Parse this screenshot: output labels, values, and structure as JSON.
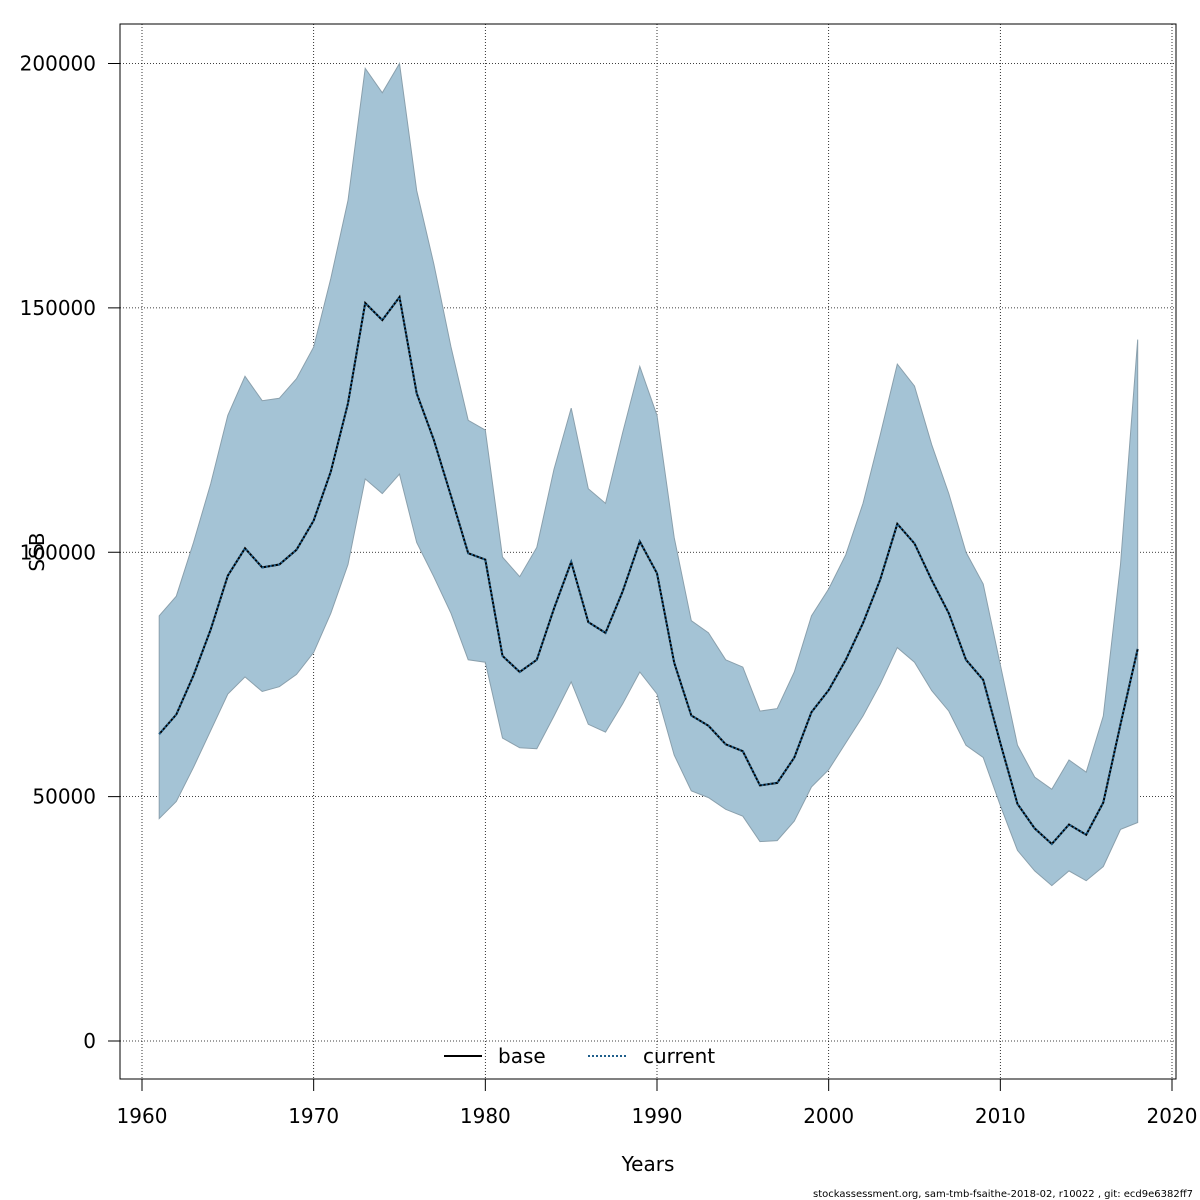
{
  "chart_data": {
    "type": "line",
    "title": "",
    "xlabel": "Years",
    "ylabel": "SSB",
    "xlim": [
      1960,
      2020
    ],
    "ylim": [
      0,
      200000
    ],
    "xticks": [
      1960,
      1970,
      1980,
      1990,
      2000,
      2010,
      2020
    ],
    "yticks": [
      0,
      50000,
      100000,
      150000,
      200000
    ],
    "grid": true,
    "legend_position": "bottom-center",
    "band_color": "#a4c3d5",
    "band_edge_color": "#8aa0ad",
    "years": [
      1961,
      1962,
      1963,
      1964,
      1965,
      1966,
      1967,
      1968,
      1969,
      1970,
      1971,
      1972,
      1973,
      1974,
      1975,
      1976,
      1977,
      1978,
      1979,
      1980,
      1981,
      1982,
      1983,
      1984,
      1985,
      1986,
      1987,
      1988,
      1989,
      1990,
      1991,
      1992,
      1993,
      1994,
      1995,
      1996,
      1997,
      1998,
      1999,
      2000,
      2001,
      2002,
      2003,
      2004,
      2005,
      2006,
      2007,
      2008,
      2009,
      2010,
      2011,
      2012,
      2013,
      2014,
      2015,
      2016,
      2017,
      2018
    ],
    "upper": [
      87000,
      91000,
      102000,
      114000,
      128000,
      136000,
      131000,
      131500,
      135500,
      142000,
      156000,
      172000,
      199000,
      194000,
      200000,
      174000,
      159000,
      142000,
      127000,
      125000,
      99000,
      95000,
      101000,
      117000,
      129500,
      113000,
      110000,
      124500,
      138000,
      128000,
      103000,
      86000,
      83500,
      78000,
      76500,
      67500,
      68000,
      75500,
      87000,
      92500,
      99500,
      110000,
      124000,
      138500,
      134000,
      122000,
      112000,
      100000,
      93500,
      77000,
      60500,
      54000,
      51500,
      57500,
      55000,
      66500,
      97500,
      143500
    ],
    "lower": [
      45500,
      49000,
      56000,
      63500,
      71000,
      74500,
      71500,
      72500,
      75000,
      79500,
      87500,
      97500,
      115000,
      112000,
      116000,
      102000,
      95000,
      87500,
      78000,
      77500,
      62000,
      60000,
      59800,
      66500,
      73500,
      64800,
      63200,
      69000,
      75500,
      71000,
      58500,
      51200,
      49800,
      47400,
      46000,
      40800,
      41000,
      45000,
      52000,
      55500,
      61000,
      66500,
      73000,
      80500,
      77500,
      71700,
      67500,
      60500,
      58000,
      48200,
      39000,
      34800,
      31800,
      34800,
      32800,
      35700,
      43300,
      44700
    ],
    "series": [
      {
        "name": "base",
        "style": "solid",
        "color": "#000000",
        "values": [
          62800,
          66800,
          74800,
          84200,
          95200,
          100800,
          96900,
          97500,
          100500,
          106500,
          116500,
          130500,
          151000,
          147500,
          152200,
          132500,
          123000,
          111500,
          99800,
          98500,
          78800,
          75500,
          78000,
          88500,
          98000,
          85700,
          83500,
          92000,
          102200,
          95700,
          77400,
          66600,
          64500,
          60700,
          59300,
          52300,
          52800,
          58000,
          67300,
          71800,
          78000,
          85500,
          94400,
          105800,
          101800,
          94300,
          87500,
          78000,
          73900,
          61000,
          48500,
          43500,
          40300,
          44300,
          42200,
          48800,
          64800,
          80200
        ]
      },
      {
        "name": "current",
        "style": "dotted",
        "color": "#1f5f8b",
        "values": [
          62800,
          66800,
          74800,
          84200,
          95200,
          100800,
          96900,
          97500,
          100500,
          106500,
          116500,
          130500,
          151000,
          147500,
          152200,
          132500,
          123000,
          111500,
          99800,
          98500,
          78800,
          75500,
          78000,
          88500,
          98000,
          85700,
          83500,
          92000,
          102200,
          95700,
          77400,
          66600,
          64500,
          60700,
          59300,
          52300,
          52800,
          58000,
          67300,
          71800,
          78000,
          85500,
          94400,
          105800,
          101800,
          94300,
          87500,
          78000,
          73900,
          61000,
          48500,
          43500,
          40300,
          44300,
          42200,
          48800,
          64800,
          80200
        ]
      }
    ]
  },
  "footer": "stockassessment.org, sam-tmb-fsaithe-2018-02, r10022 , git: ecd9e6382ff7"
}
